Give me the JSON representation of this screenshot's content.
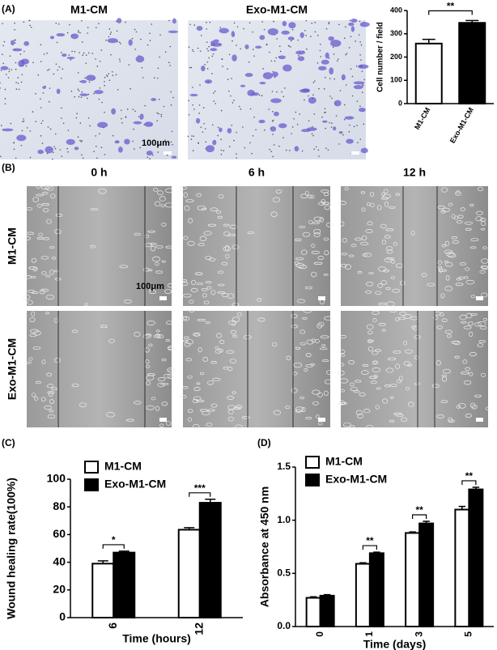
{
  "panel_labels": [
    "(A)",
    "(B)",
    "(C)",
    "(D)"
  ],
  "panel_a": {
    "images": [
      "M1-CM",
      "Exo-M1-CM"
    ],
    "scale": "100μm"
  },
  "panel_b": {
    "columns": [
      "0 h",
      "6 h",
      "12 h"
    ],
    "rows": [
      "M1-CM",
      "Exo-M1-CM"
    ],
    "scale": "100μm"
  },
  "chart_data": [
    {
      "type": "bar",
      "y_label": "Cell number / field",
      "categories": [
        "M1-CM",
        "Exo-M1-CM"
      ],
      "values": [
        258,
        347
      ],
      "errors": [
        18,
        10
      ],
      "colors": [
        "#ffffff",
        "#000000"
      ],
      "significance": "**",
      "ylim": [
        0,
        400
      ],
      "yticks": [
        0,
        100,
        200,
        300,
        400
      ]
    },
    {
      "type": "grouped-bar",
      "x_label": "Time (hours)",
      "y_label": "Wound healing rate(100%)",
      "categories": [
        "6",
        "12"
      ],
      "series": [
        {
          "name": "M1-CM",
          "color": "#ffffff",
          "values": [
            39,
            63.5
          ],
          "errors": [
            2,
            1.5
          ]
        },
        {
          "name": "Exo-M1-CM",
          "color": "#000000",
          "values": [
            47,
            83
          ],
          "errors": [
            1,
            2.5
          ]
        }
      ],
      "significance": [
        "*",
        "***"
      ],
      "ylim": [
        0,
        100
      ],
      "yticks": [
        0,
        20,
        40,
        60,
        80,
        100
      ]
    },
    {
      "type": "grouped-bar",
      "x_label": "Time (days)",
      "y_label": "Absorbance at 450 nm",
      "categories": [
        "0",
        "1",
        "3",
        "5"
      ],
      "series": [
        {
          "name": "M1-CM",
          "color": "#ffffff",
          "values": [
            0.27,
            0.59,
            0.88,
            1.1
          ],
          "errors": [
            0.01,
            0.01,
            0.01,
            0.03
          ]
        },
        {
          "name": "Exo-M1-CM",
          "color": "#000000",
          "values": [
            0.29,
            0.69,
            0.97,
            1.29
          ],
          "errors": [
            0.01,
            0.01,
            0.02,
            0.02
          ]
        }
      ],
      "significance": [
        null,
        "**",
        "**",
        "**"
      ],
      "ylim": [
        0,
        1.5
      ],
      "yticks": [
        {
          "value": 0,
          "label": "0.0"
        },
        0.5,
        {
          "value": 1,
          "label": "1.0"
        },
        1.5
      ]
    }
  ]
}
